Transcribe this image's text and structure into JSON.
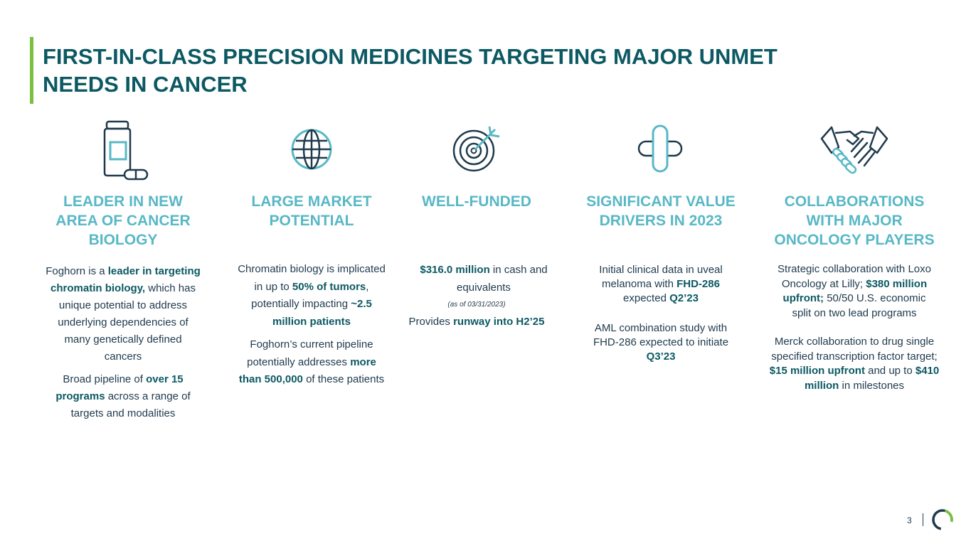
{
  "slide": {
    "title": "FIRST-IN-CLASS PRECISION MEDICINES TARGETING MAJOR UNMET NEEDS IN CANCER",
    "page_number": "3"
  },
  "columns": [
    {
      "icon": "medicine-bottle-icon",
      "heading": "LEADER IN NEW AREA OF CANCER BIOLOGY",
      "p1_a": "Foghorn is a ",
      "p1_b": "leader in targeting chromatin biology,",
      "p1_c": " which has unique potential to address underlying dependencies of many genetically defined cancers",
      "p2_a": "Broad pipeline of ",
      "p2_b": "over 15 programs",
      "p2_c": " across a range of targets and modalities"
    },
    {
      "icon": "globe-icon",
      "heading": "LARGE MARKET POTENTIAL",
      "p1_a": "Chromatin biology is implicated in up to ",
      "p1_b": "50% of tumors",
      "p1_c": ", potentially impacting ",
      "p1_d": "~2.5 million patients",
      "p2_a": "Foghorn’s current pipeline potentially addresses ",
      "p2_b": "more than 500,000",
      "p2_c": " of these patients"
    },
    {
      "icon": "target-icon",
      "heading": "WELL-FUNDED",
      "p1_a": "$316.0 million",
      "p1_b": " in cash and equivalents",
      "note": "(as of 03/31/2023)",
      "p2_a": "Provides ",
      "p2_b": "runway into H2’25"
    },
    {
      "icon": "bandage-cross-icon",
      "heading": "SIGNIFICANT VALUE DRIVERS IN 2023",
      "p1_a": "Initial clinical data in uveal melanoma with ",
      "p1_b": "FHD-286",
      "p1_c": " expected ",
      "p1_d": "Q2’23",
      "p2_a": "AML combination study with FHD-286 expected to initiate ",
      "p2_b": "Q3’23"
    },
    {
      "icon": "handshake-icon",
      "heading": "COLLABORATIONS WITH MAJOR ONCOLOGY PLAYERS",
      "p1_a": "Strategic collaboration with Loxo Oncology at Lilly; ",
      "p1_b": "$380 million upfront;",
      "p1_c": " 50/50 U.S. economic split on two lead programs",
      "p2_a": "Merck collaboration to drug single specified transcription factor target; ",
      "p2_b": "$15 million upfront",
      "p2_c": " and up to ",
      "p2_d": "$410 million",
      "p2_e": " in milestones"
    }
  ],
  "colors": {
    "title": "#0c5963",
    "heading": "#58b8c6",
    "accent_bar": "#7bbf3f",
    "body": "#1f3a4d",
    "icon_dark": "#1f3a4d",
    "icon_light": "#58b8c6"
  }
}
